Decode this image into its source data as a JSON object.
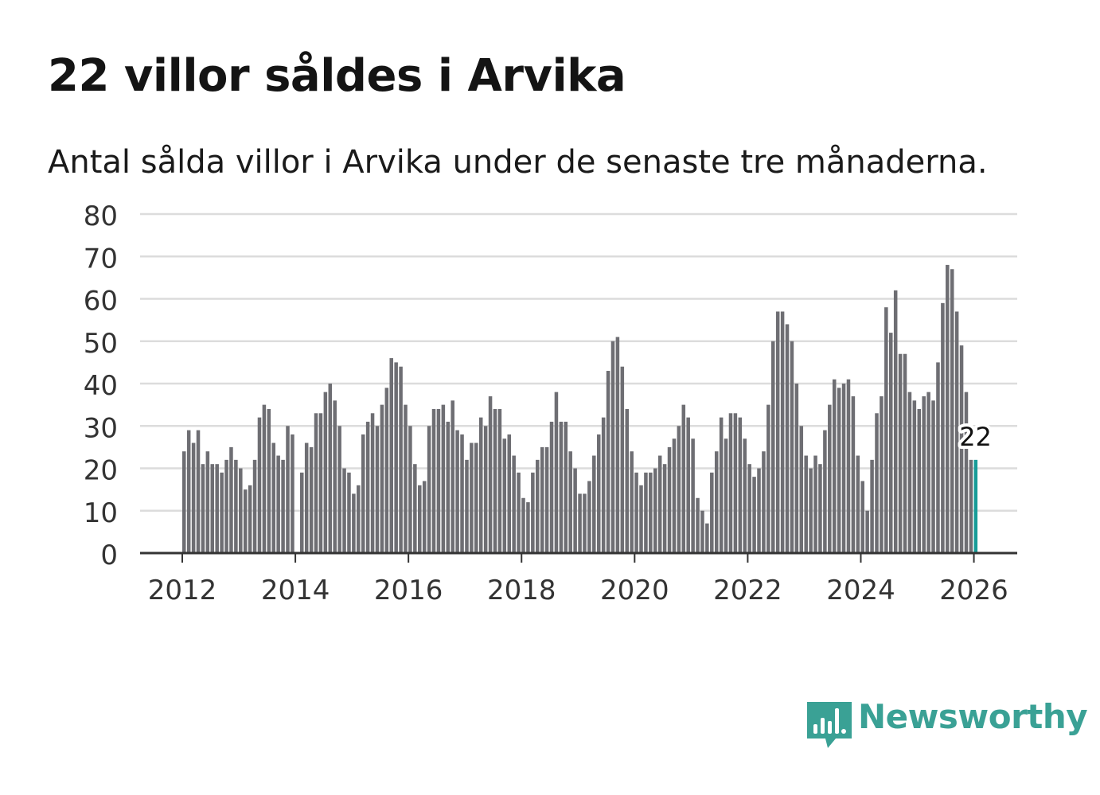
{
  "title": "22 villor såldes i Arvika",
  "subtitle": "Antal sålda villor i Arvika under de senaste tre månaderna.",
  "brand": {
    "name": "Newsworthy",
    "color": "#3aa195"
  },
  "colors": {
    "bar": "#6e6e73",
    "highlight": "#179c98",
    "grid": "#dcdcdc",
    "axis": "#333333"
  },
  "chart_data": {
    "type": "bar",
    "title": "22 villor såldes i Arvika",
    "xlabel": "",
    "ylabel": "",
    "ylim": [
      0,
      80
    ],
    "yticks": [
      0,
      10,
      20,
      30,
      40,
      50,
      60,
      70,
      80
    ],
    "xticks": [
      "2012",
      "2014",
      "2016",
      "2018",
      "2020",
      "2022",
      "2024",
      "2026"
    ],
    "start": "2012-01",
    "frequency": "monthly",
    "highlight_label": "22",
    "values": [
      24,
      29,
      26,
      29,
      21,
      24,
      21,
      21,
      19,
      22,
      25,
      22,
      20,
      15,
      16,
      22,
      32,
      35,
      34,
      26,
      23,
      22,
      30,
      28,
      0,
      19,
      26,
      25,
      33,
      33,
      38,
      40,
      36,
      30,
      20,
      19,
      14,
      16,
      28,
      31,
      33,
      30,
      35,
      39,
      46,
      45,
      44,
      35,
      30,
      21,
      16,
      17,
      30,
      34,
      34,
      35,
      31,
      36,
      29,
      28,
      22,
      26,
      26,
      32,
      30,
      37,
      34,
      34,
      27,
      28,
      23,
      19,
      13,
      12,
      19,
      22,
      25,
      25,
      31,
      38,
      31,
      31,
      24,
      20,
      14,
      14,
      17,
      23,
      28,
      32,
      43,
      50,
      51,
      44,
      34,
      24,
      19,
      16,
      19,
      19,
      20,
      23,
      21,
      25,
      27,
      30,
      35,
      32,
      27,
      13,
      10,
      7,
      19,
      24,
      32,
      27,
      33,
      33,
      32,
      27,
      21,
      18,
      20,
      24,
      35,
      50,
      57,
      57,
      54,
      50,
      40,
      30,
      23,
      20,
      23,
      21,
      29,
      35,
      41,
      39,
      40,
      41,
      37,
      23,
      17,
      10,
      22,
      33,
      37,
      58,
      52,
      62,
      47,
      47,
      38,
      36,
      34,
      37,
      38,
      36,
      45,
      59,
      68,
      67,
      57,
      49,
      38,
      22,
      22
    ]
  }
}
